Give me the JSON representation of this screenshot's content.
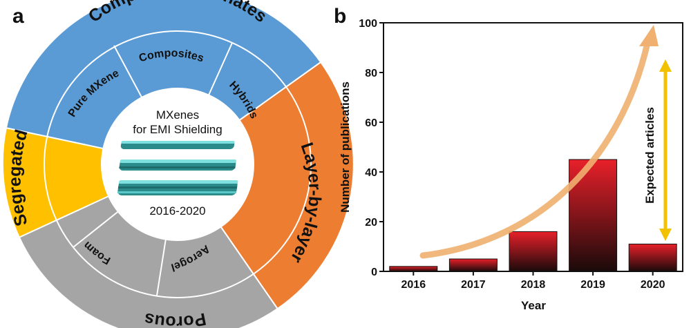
{
  "panel_a": {
    "label": "a",
    "center": {
      "line1": "MXenes",
      "line2": "for EMI Shielding",
      "years": "2016-2020"
    },
    "categories": {
      "compact": "Compact & Laminates",
      "layer": "Layer-by-layer",
      "porous": "Porous",
      "segregated": "Segregated"
    },
    "subcategories": {
      "pure": "Pure MXene",
      "composites": "Composites",
      "hybrids": "Hybrids",
      "foam": "Foam",
      "aerogel": "Aerogel"
    },
    "colors": {
      "compact": "#5b9bd5",
      "layer": "#ed7d31",
      "porous": "#a5a5a5",
      "segregated": "#ffc000"
    }
  },
  "panel_b": {
    "label": "b",
    "annotation": "Expected articles"
  },
  "chart_data": {
    "type": "bar",
    "categories": [
      "2016",
      "2017",
      "2018",
      "2019",
      "2020"
    ],
    "values": [
      2,
      5,
      16,
      45,
      11
    ],
    "xlabel": "Year",
    "ylabel": "Number of publications",
    "ylim": [
      0,
      100
    ],
    "yticks": [
      0,
      20,
      40,
      60,
      80,
      100
    ],
    "grid": false,
    "bar_color_top": "#e8202a",
    "bar_color_bottom": "#1a0a0a",
    "trend_arrow_color": "#f0b070",
    "annotation_arrow_color": "#f2c200"
  }
}
